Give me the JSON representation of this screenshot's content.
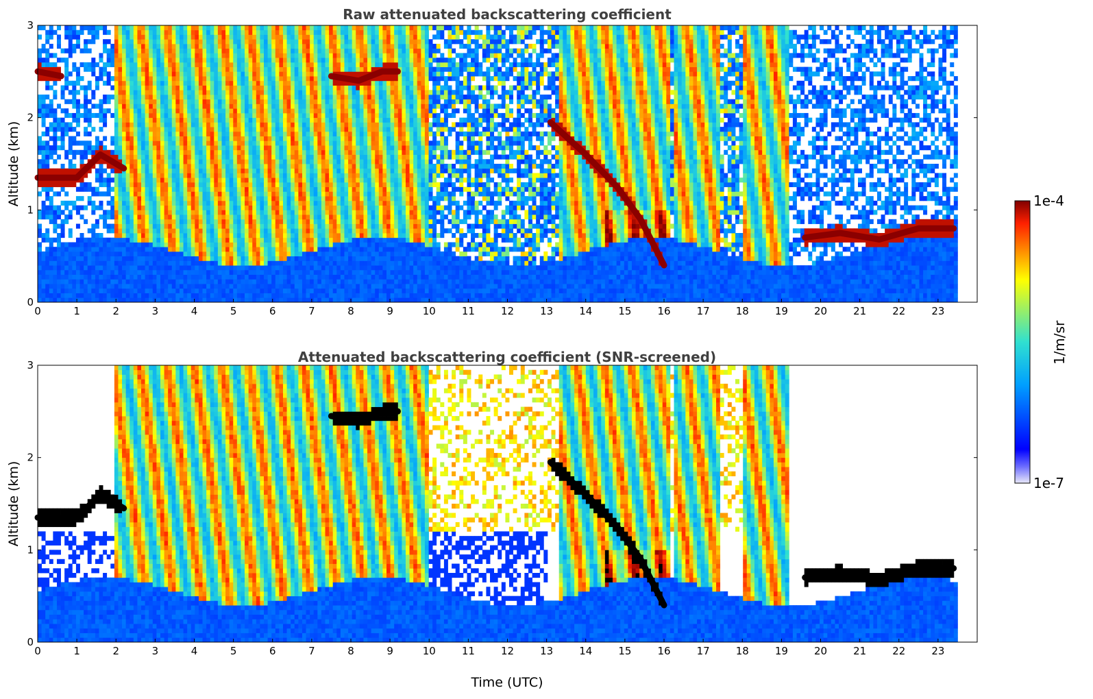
{
  "chart_data": [
    {
      "type": "heatmap",
      "title": "Raw attenuated backscattering coefficient",
      "xlabel": "",
      "ylabel": "Altitude (km)",
      "xlim": [
        0,
        24
      ],
      "ylim": [
        0,
        3
      ],
      "x_ticks": [
        "0",
        "1",
        "2",
        "3",
        "4",
        "5",
        "6",
        "7",
        "8",
        "9",
        "10",
        "11",
        "12",
        "13",
        "14",
        "15",
        "16",
        "17",
        "18",
        "19",
        "20",
        "21",
        "22",
        "23"
      ],
      "y_ticks": [
        "0",
        "1",
        "2",
        "3"
      ],
      "data_end_hour": 23.5,
      "screened": false,
      "features": [
        {
          "kind": "cloud_layer",
          "points": [
            [
              0,
              1.35
            ],
            [
              1,
              1.35
            ],
            [
              1.6,
              1.6
            ],
            [
              2.2,
              1.45
            ]
          ]
        },
        {
          "kind": "cloud_layer",
          "points": [
            [
              0,
              2.5
            ],
            [
              0.6,
              2.45
            ]
          ]
        },
        {
          "kind": "cloud_layer",
          "points": [
            [
              7.5,
              2.45
            ],
            [
              8.2,
              2.4
            ],
            [
              8.8,
              2.5
            ],
            [
              9.2,
              2.5
            ]
          ]
        },
        {
          "kind": "cloud_layer",
          "points": [
            [
              13.1,
              1.95
            ],
            [
              14.0,
              1.6
            ],
            [
              14.8,
              1.25
            ],
            [
              15.4,
              0.9
            ],
            [
              16.0,
              0.4
            ]
          ]
        },
        {
          "kind": "cloud_layer",
          "points": [
            [
              19.6,
              0.7
            ],
            [
              20.5,
              0.75
            ],
            [
              21.5,
              0.68
            ],
            [
              22.5,
              0.8
            ],
            [
              23.4,
              0.8
            ]
          ]
        }
      ],
      "colorscale": "jet-log"
    },
    {
      "type": "heatmap",
      "title": "Attenuated backscattering coefficient (SNR-screened)",
      "xlabel": "Time (UTC)",
      "ylabel": "Altitude (km)",
      "xlim": [
        0,
        24
      ],
      "ylim": [
        0,
        3
      ],
      "x_ticks": [
        "0",
        "1",
        "2",
        "3",
        "4",
        "5",
        "6",
        "7",
        "8",
        "9",
        "10",
        "11",
        "12",
        "13",
        "14",
        "15",
        "16",
        "17",
        "18",
        "19",
        "20",
        "21",
        "22",
        "23"
      ],
      "y_ticks": [
        "0",
        "1",
        "2",
        "3"
      ],
      "data_end_hour": 23.5,
      "screened": true,
      "features": [
        {
          "kind": "cloud_layer",
          "points": [
            [
              0,
              1.35
            ],
            [
              1,
              1.35
            ],
            [
              1.6,
              1.6
            ],
            [
              2.2,
              1.45
            ]
          ]
        },
        {
          "kind": "cloud_layer",
          "points": [
            [
              7.5,
              2.45
            ],
            [
              8.2,
              2.4
            ],
            [
              8.8,
              2.5
            ],
            [
              9.2,
              2.5
            ]
          ]
        },
        {
          "kind": "cloud_layer",
          "points": [
            [
              13.1,
              1.95
            ],
            [
              14.0,
              1.6
            ],
            [
              14.8,
              1.25
            ],
            [
              15.4,
              0.9
            ],
            [
              16.0,
              0.4
            ]
          ]
        },
        {
          "kind": "cloud_layer",
          "points": [
            [
              19.6,
              0.7
            ],
            [
              20.5,
              0.75
            ],
            [
              21.5,
              0.68
            ],
            [
              22.5,
              0.8
            ],
            [
              23.4,
              0.8
            ]
          ]
        }
      ],
      "colorscale": "jet-log"
    }
  ],
  "colorbar": {
    "label": "1/m/sr",
    "max_label": "1e-4",
    "min_label": "1e-7",
    "scale": "log",
    "stops": [
      "#e8e8f8",
      "#0000ff",
      "#00a0ff",
      "#30e0d0",
      "#a0f060",
      "#ffff00",
      "#ff9000",
      "#ff2000",
      "#800000"
    ]
  }
}
